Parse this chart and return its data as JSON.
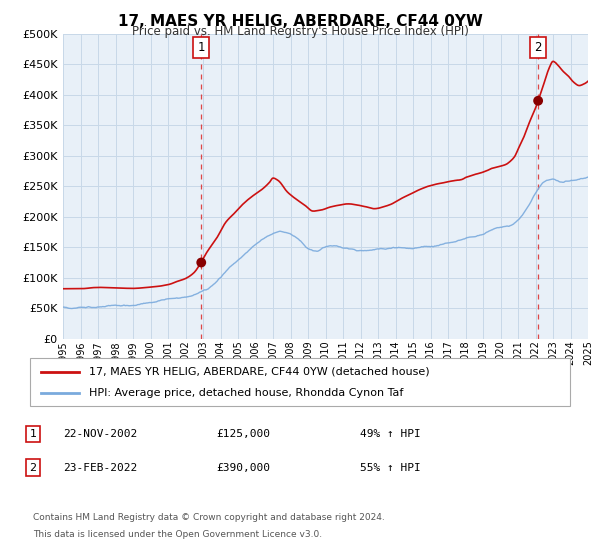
{
  "title": "17, MAES YR HELIG, ABERDARE, CF44 0YW",
  "subtitle": "Price paid vs. HM Land Registry's House Price Index (HPI)",
  "legend_line1": "17, MAES YR HELIG, ABERDARE, CF44 0YW (detached house)",
  "legend_line2": "HPI: Average price, detached house, Rhondda Cynon Taf",
  "annotation1_label": "1",
  "annotation1_date": "22-NOV-2002",
  "annotation1_price": "£125,000",
  "annotation1_hpi": "49% ↑ HPI",
  "annotation2_label": "2",
  "annotation2_date": "23-FEB-2022",
  "annotation2_price": "£390,000",
  "annotation2_hpi": "55% ↑ HPI",
  "footer_line1": "Contains HM Land Registry data © Crown copyright and database right 2024.",
  "footer_line2": "This data is licensed under the Open Government Licence v3.0.",
  "sale1_x": 2002.9,
  "sale1_y": 125000,
  "sale2_x": 2022.15,
  "sale2_y": 390000,
  "vline1_x": 2002.9,
  "vline2_x": 2022.15,
  "hpi_color": "#7aaadd",
  "sale_color": "#cc1111",
  "sale_dot_color": "#880000",
  "vline_color": "#dd3333",
  "plot_bg_color": "#e8f0f8",
  "grid_color": "#c8d8e8",
  "ylim": [
    0,
    500000
  ],
  "xlim": [
    1995,
    2025
  ],
  "yticks": [
    0,
    50000,
    100000,
    150000,
    200000,
    250000,
    300000,
    350000,
    400000,
    450000,
    500000
  ]
}
